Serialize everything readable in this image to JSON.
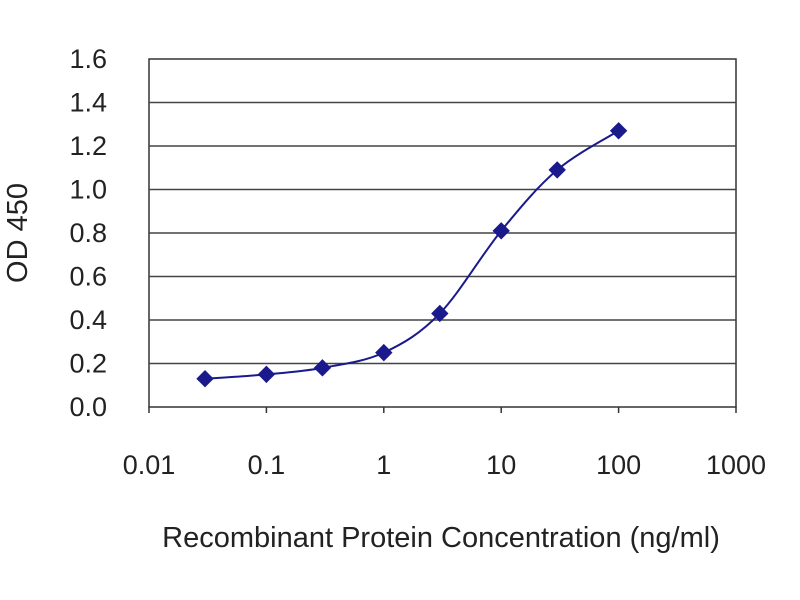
{
  "chart_data": {
    "type": "scatter",
    "xlabel": "Recombinant Protein Concentration (ng/ml)",
    "ylabel": "OD 450",
    "x_scale": "log",
    "xlim": [
      0.01,
      1000
    ],
    "ylim": [
      0,
      1.6
    ],
    "x_ticks": [
      "0.01",
      "0.1",
      "1",
      "10",
      "100",
      "1000"
    ],
    "y_ticks": [
      "0.0",
      "0.2",
      "0.4",
      "0.6",
      "0.8",
      "1.0",
      "1.2",
      "1.4",
      "1.6"
    ],
    "grid": "horizontal",
    "series": [
      {
        "x": [
          0.03,
          0.1,
          0.3,
          1,
          3,
          10,
          30,
          100
        ],
        "y": [
          0.13,
          0.15,
          0.18,
          0.25,
          0.43,
          0.81,
          1.09,
          1.27
        ],
        "color": "#1a1a8c",
        "marker": "diamond",
        "fit": "sigmoidal curve"
      }
    ]
  }
}
